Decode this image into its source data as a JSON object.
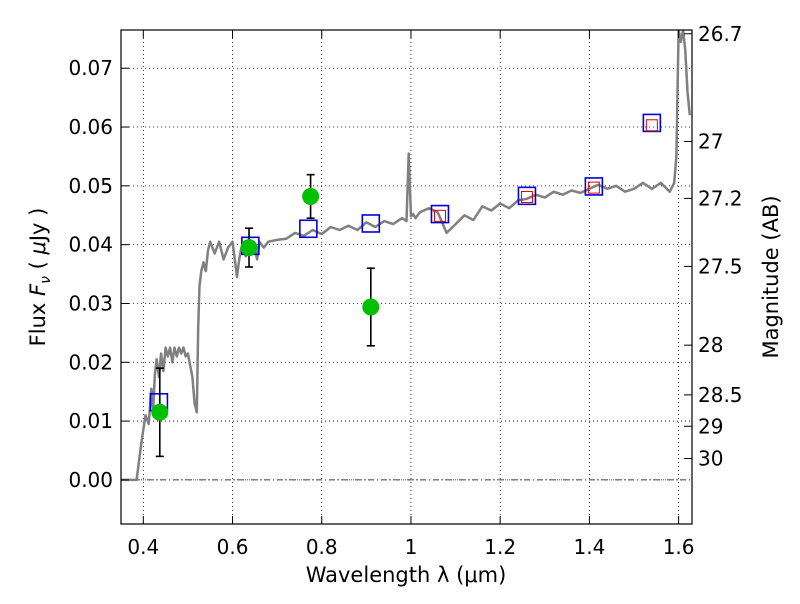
{
  "chart_data": {
    "type": "scatter",
    "title": "",
    "xlabel": "Wavelength  λ (μm)",
    "ylabel": "Flux  F_ν  ( μJy )",
    "ylabel_parts": {
      "pre": "Flux  ",
      "F": "F",
      "nu": "ν",
      "mid": "  ( ",
      "mu": "μ",
      "post": "Jy )"
    },
    "y2label": "Magnitude (AB)",
    "xlim": [
      0.35,
      1.63
    ],
    "ylim": [
      -0.0075,
      0.0765
    ],
    "grid": true,
    "x_ticks": [
      {
        "value": 0.4,
        "label": "0.4"
      },
      {
        "value": 0.6,
        "label": "0.6"
      },
      {
        "value": 0.8,
        "label": "0.8"
      },
      {
        "value": 1.0,
        "label": "1"
      },
      {
        "value": 1.2,
        "label": "1.2"
      },
      {
        "value": 1.4,
        "label": "1.4"
      },
      {
        "value": 1.6,
        "label": "1.6"
      }
    ],
    "y_ticks": [
      {
        "value": 0.0,
        "label": "0.00"
      },
      {
        "value": 0.01,
        "label": "0.01"
      },
      {
        "value": 0.02,
        "label": "0.02"
      },
      {
        "value": 0.03,
        "label": "0.03"
      },
      {
        "value": 0.04,
        "label": "0.04"
      },
      {
        "value": 0.05,
        "label": "0.05"
      },
      {
        "value": 0.06,
        "label": "0.06"
      },
      {
        "value": 0.07,
        "label": "0.07"
      }
    ],
    "mag_ticks": [
      {
        "value": 26.7,
        "label": "26.7"
      },
      {
        "value": 27.0,
        "label": "27"
      },
      {
        "value": 27.2,
        "label": "27.2"
      },
      {
        "value": 27.5,
        "label": "27.5"
      },
      {
        "value": 28.0,
        "label": "28"
      },
      {
        "value": 28.5,
        "label": "28.5"
      },
      {
        "value": 29.0,
        "label": "29"
      },
      {
        "value": 30.0,
        "label": "30"
      }
    ],
    "series": [
      {
        "kind": "spectrum",
        "color": "#808080",
        "x": [
          0.35,
          0.385,
          0.395,
          0.405,
          0.412,
          0.418,
          0.422,
          0.426,
          0.43,
          0.435,
          0.44,
          0.445,
          0.45,
          0.455,
          0.46,
          0.465,
          0.47,
          0.475,
          0.48,
          0.485,
          0.49,
          0.495,
          0.5,
          0.505,
          0.51,
          0.515,
          0.52,
          0.523,
          0.526,
          0.53,
          0.535,
          0.54,
          0.545,
          0.55,
          0.56,
          0.57,
          0.58,
          0.59,
          0.6,
          0.61,
          0.615,
          0.62,
          0.63,
          0.64,
          0.65,
          0.655,
          0.66,
          0.67,
          0.68,
          0.7,
          0.72,
          0.74,
          0.76,
          0.78,
          0.8,
          0.82,
          0.84,
          0.86,
          0.88,
          0.9,
          0.92,
          0.94,
          0.96,
          0.98,
          0.99,
          0.995,
          1.0,
          1.005,
          1.01,
          1.02,
          1.04,
          1.06,
          1.08,
          1.1,
          1.12,
          1.14,
          1.16,
          1.18,
          1.2,
          1.22,
          1.24,
          1.26,
          1.28,
          1.3,
          1.32,
          1.34,
          1.36,
          1.38,
          1.4,
          1.42,
          1.44,
          1.46,
          1.48,
          1.5,
          1.52,
          1.54,
          1.56,
          1.58,
          1.59,
          1.595,
          1.6,
          1.605,
          1.61,
          1.615,
          1.62,
          1.625
        ],
        "y": [
          0.0,
          0.0,
          0.006,
          0.011,
          0.0095,
          0.0155,
          0.012,
          0.018,
          0.0205,
          0.0175,
          0.0215,
          0.0185,
          0.0225,
          0.021,
          0.0225,
          0.02,
          0.0225,
          0.021,
          0.0225,
          0.0215,
          0.0225,
          0.021,
          0.0215,
          0.0195,
          0.0175,
          0.013,
          0.0115,
          0.026,
          0.033,
          0.0355,
          0.037,
          0.0355,
          0.039,
          0.0405,
          0.0385,
          0.0405,
          0.0375,
          0.0395,
          0.0405,
          0.0345,
          0.0375,
          0.0395,
          0.038,
          0.0405,
          0.0395,
          0.0375,
          0.0405,
          0.0395,
          0.0405,
          0.0408,
          0.041,
          0.042,
          0.0415,
          0.0425,
          0.0418,
          0.043,
          0.0425,
          0.0432,
          0.0425,
          0.0438,
          0.043,
          0.044,
          0.0435,
          0.0445,
          0.044,
          0.0555,
          0.0448,
          0.0452,
          0.0445,
          0.0455,
          0.0462,
          0.0455,
          0.042,
          0.0435,
          0.045,
          0.0442,
          0.0465,
          0.0458,
          0.047,
          0.0462,
          0.0475,
          0.0478,
          0.0485,
          0.048,
          0.049,
          0.0485,
          0.0492,
          0.0488,
          0.0495,
          0.0502,
          0.0495,
          0.05,
          0.049,
          0.0495,
          0.0505,
          0.0495,
          0.0505,
          0.049,
          0.0505,
          0.055,
          0.0765,
          0.0745,
          0.0765,
          0.073,
          0.066,
          0.062
        ]
      },
      {
        "kind": "observed",
        "color": "#00c000",
        "x": [
          0.437,
          0.637,
          0.775,
          0.91
        ],
        "y": [
          0.0115,
          0.0395,
          0.0482,
          0.0294
        ],
        "err": [
          0.0075,
          0.0033,
          0.0037,
          0.0066
        ]
      },
      {
        "kind": "model-blue",
        "color": "#0000dd",
        "x": [
          0.435,
          0.64,
          0.77,
          0.91,
          1.065,
          1.26,
          1.41,
          1.54
        ],
        "y": [
          0.0132,
          0.0398,
          0.0427,
          0.0436,
          0.0452,
          0.0483,
          0.0499,
          0.0607
        ]
      },
      {
        "kind": "model-red",
        "color": "#e00000",
        "x": [
          1.065,
          1.26,
          1.41,
          1.54
        ],
        "y": [
          0.0449,
          0.0481,
          0.0497,
          0.0603
        ]
      }
    ]
  }
}
